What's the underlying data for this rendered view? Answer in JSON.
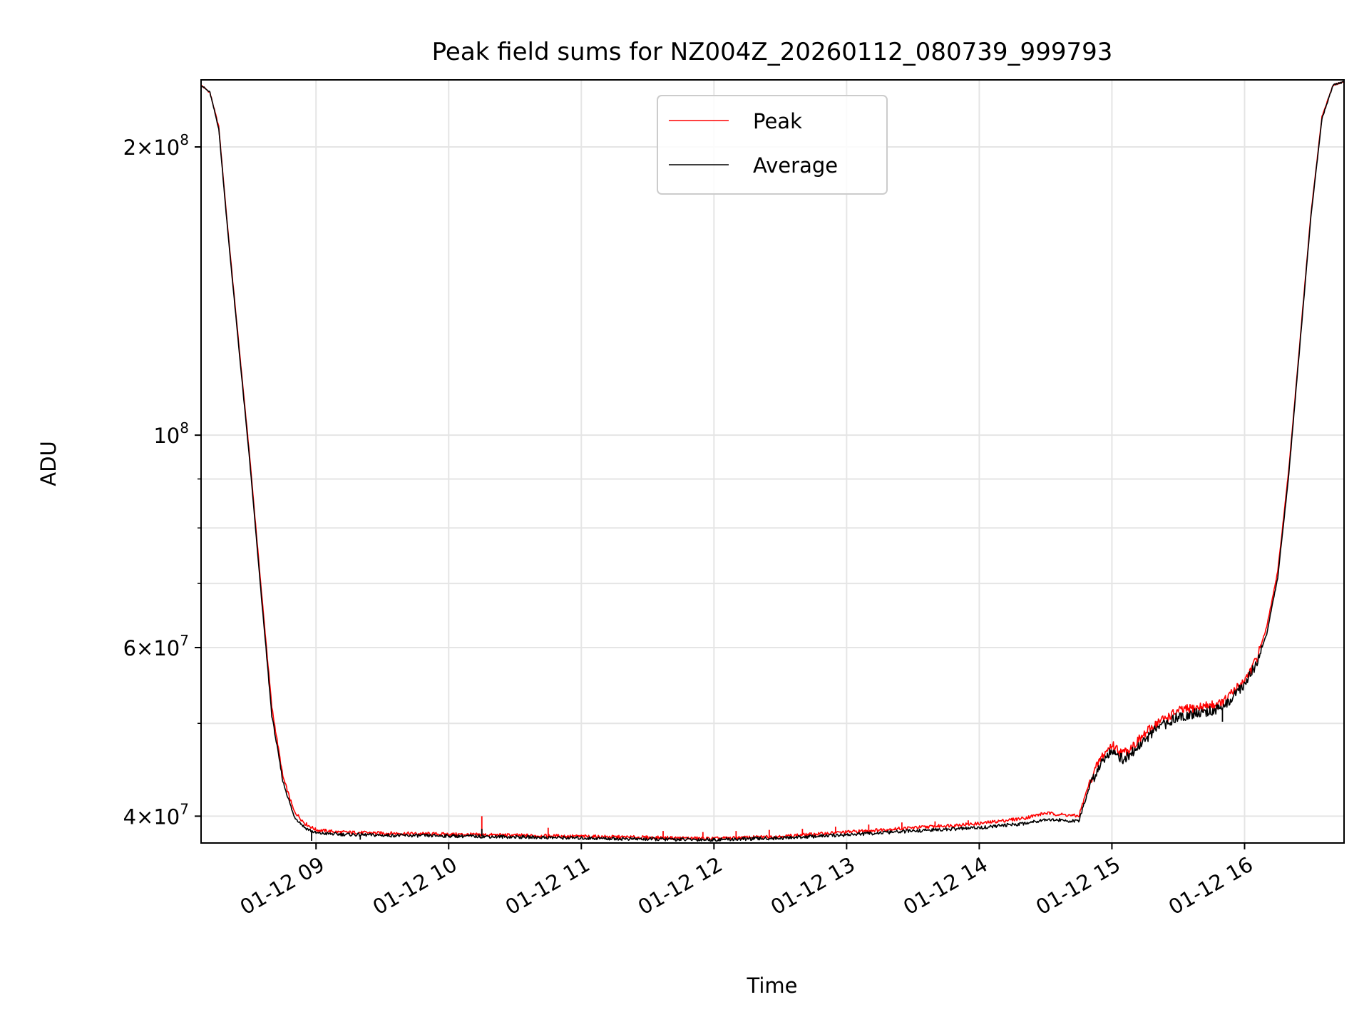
{
  "chart_data": {
    "type": "line",
    "title": "Peak field sums for NZ004Z_20260112_080739_999793",
    "xlabel": "Time",
    "ylabel": "ADU",
    "y_scale": "log",
    "x_range": [
      "2026-01-12 08:08",
      "2026-01-12 16:45"
    ],
    "y_range": [
      37500000,
      235000000
    ],
    "grid": true,
    "legend_position": "top-center",
    "x_ticks": [
      {
        "value": "2026-01-12 09:00",
        "label": "01-12 09"
      },
      {
        "value": "2026-01-12 10:00",
        "label": "01-12 10"
      },
      {
        "value": "2026-01-12 11:00",
        "label": "01-12 11"
      },
      {
        "value": "2026-01-12 12:00",
        "label": "01-12 12"
      },
      {
        "value": "2026-01-12 13:00",
        "label": "01-12 13"
      },
      {
        "value": "2026-01-12 14:00",
        "label": "01-12 14"
      },
      {
        "value": "2026-01-12 15:00",
        "label": "01-12 15"
      },
      {
        "value": "2026-01-12 16:00",
        "label": "01-12 16"
      }
    ],
    "y_major_ticks": [
      {
        "value": 40000000,
        "mantissa": "4",
        "base": "10",
        "exp": "7"
      },
      {
        "value": 60000000,
        "mantissa": "6",
        "base": "10",
        "exp": "7"
      },
      {
        "value": 100000000,
        "mantissa": "",
        "base": "10",
        "exp": "8"
      },
      {
        "value": 200000000,
        "mantissa": "2",
        "base": "10",
        "exp": "8"
      }
    ],
    "y_minor_ticks": [
      50000000,
      70000000,
      80000000,
      90000000
    ],
    "series": [
      {
        "name": "Peak",
        "color": "#ff0000",
        "x": [
          "2026-01-12 08:08",
          "2026-01-12 08:12",
          "2026-01-12 08:16",
          "2026-01-12 08:20",
          "2026-01-12 08:25",
          "2026-01-12 08:30",
          "2026-01-12 08:35",
          "2026-01-12 08:40",
          "2026-01-12 08:45",
          "2026-01-12 08:50",
          "2026-01-12 08:55",
          "2026-01-12 09:00",
          "2026-01-12 09:10",
          "2026-01-12 09:30",
          "2026-01-12 10:00",
          "2026-01-12 10:30",
          "2026-01-12 11:00",
          "2026-01-12 11:30",
          "2026-01-12 12:00",
          "2026-01-12 12:30",
          "2026-01-12 13:00",
          "2026-01-12 13:30",
          "2026-01-12 14:00",
          "2026-01-12 14:20",
          "2026-01-12 14:30",
          "2026-01-12 14:45",
          "2026-01-12 14:50",
          "2026-01-12 14:55",
          "2026-01-12 15:00",
          "2026-01-12 15:05",
          "2026-01-12 15:10",
          "2026-01-12 15:20",
          "2026-01-12 15:30",
          "2026-01-12 15:40",
          "2026-01-12 15:50",
          "2026-01-12 16:00",
          "2026-01-12 16:05",
          "2026-01-12 16:10",
          "2026-01-12 16:15",
          "2026-01-12 16:20",
          "2026-01-12 16:25",
          "2026-01-12 16:30",
          "2026-01-12 16:35",
          "2026-01-12 16:40",
          "2026-01-12 16:45"
        ],
        "y": [
          232000000,
          228000000,
          210000000,
          165000000,
          125000000,
          95000000,
          70000000,
          52000000,
          44000000,
          40500000,
          39300000,
          38700000,
          38500000,
          38400000,
          38300000,
          38200000,
          38100000,
          38000000,
          37900000,
          38100000,
          38500000,
          38900000,
          39300000,
          39800000,
          40300000,
          40000000,
          43500000,
          46000000,
          47500000,
          46500000,
          47500000,
          50000000,
          51500000,
          52000000,
          52500000,
          55500000,
          58000000,
          63000000,
          72000000,
          92000000,
          125000000,
          170000000,
          215000000,
          232000000,
          234000000
        ],
        "spikes": [
          {
            "x": "2026-01-12 10:15",
            "y": 40000000
          },
          {
            "x": "2026-01-12 10:45",
            "y": 38900000
          },
          {
            "x": "2026-01-12 11:37",
            "y": 38600000
          },
          {
            "x": "2026-01-12 11:55",
            "y": 38500000
          },
          {
            "x": "2026-01-12 12:10",
            "y": 38600000
          },
          {
            "x": "2026-01-12 12:25",
            "y": 38700000
          },
          {
            "x": "2026-01-12 12:40",
            "y": 38800000
          },
          {
            "x": "2026-01-12 12:55",
            "y": 39000000
          },
          {
            "x": "2026-01-12 13:10",
            "y": 39200000
          },
          {
            "x": "2026-01-12 13:25",
            "y": 39400000
          },
          {
            "x": "2026-01-12 13:40",
            "y": 39500000
          },
          {
            "x": "2026-01-12 13:55",
            "y": 39600000
          }
        ]
      },
      {
        "name": "Average",
        "color": "#000000",
        "x": [
          "2026-01-12 08:08",
          "2026-01-12 08:12",
          "2026-01-12 08:16",
          "2026-01-12 08:20",
          "2026-01-12 08:25",
          "2026-01-12 08:30",
          "2026-01-12 08:35",
          "2026-01-12 08:40",
          "2026-01-12 08:45",
          "2026-01-12 08:50",
          "2026-01-12 08:55",
          "2026-01-12 09:00",
          "2026-01-12 09:10",
          "2026-01-12 09:30",
          "2026-01-12 10:00",
          "2026-01-12 10:30",
          "2026-01-12 11:00",
          "2026-01-12 11:30",
          "2026-01-12 12:00",
          "2026-01-12 12:30",
          "2026-01-12 13:00",
          "2026-01-12 13:30",
          "2026-01-12 14:00",
          "2026-01-12 14:20",
          "2026-01-12 14:30",
          "2026-01-12 14:45",
          "2026-01-12 14:50",
          "2026-01-12 14:55",
          "2026-01-12 15:00",
          "2026-01-12 15:05",
          "2026-01-12 15:10",
          "2026-01-12 15:20",
          "2026-01-12 15:30",
          "2026-01-12 15:40",
          "2026-01-12 15:50",
          "2026-01-12 16:00",
          "2026-01-12 16:05",
          "2026-01-12 16:10",
          "2026-01-12 16:15",
          "2026-01-12 16:20",
          "2026-01-12 16:25",
          "2026-01-12 16:30",
          "2026-01-12 16:35",
          "2026-01-12 16:40",
          "2026-01-12 16:45"
        ],
        "y": [
          232000000,
          228000000,
          209000000,
          164000000,
          124000000,
          94000000,
          69000000,
          51000000,
          43500000,
          40000000,
          38900000,
          38400000,
          38300000,
          38200000,
          38150000,
          38050000,
          37950000,
          37850000,
          37800000,
          37950000,
          38250000,
          38600000,
          38900000,
          39300000,
          39700000,
          39500000,
          43000000,
          45500000,
          47000000,
          45800000,
          46800000,
          49300000,
          50800000,
          51300000,
          51800000,
          55000000,
          57500000,
          62000000,
          71000000,
          91000000,
          124000000,
          169000000,
          214000000,
          232000000,
          234000000
        ],
        "spikes": [
          {
            "x": "2026-01-12 08:58",
            "y": 37700000
          },
          {
            "x": "2026-01-12 09:20",
            "y": 37800000
          },
          {
            "x": "2026-01-12 10:15",
            "y": 38800000
          },
          {
            "x": "2026-01-12 11:45",
            "y": 37700000
          },
          {
            "x": "2026-01-12 15:50",
            "y": 50200000
          }
        ]
      }
    ]
  }
}
